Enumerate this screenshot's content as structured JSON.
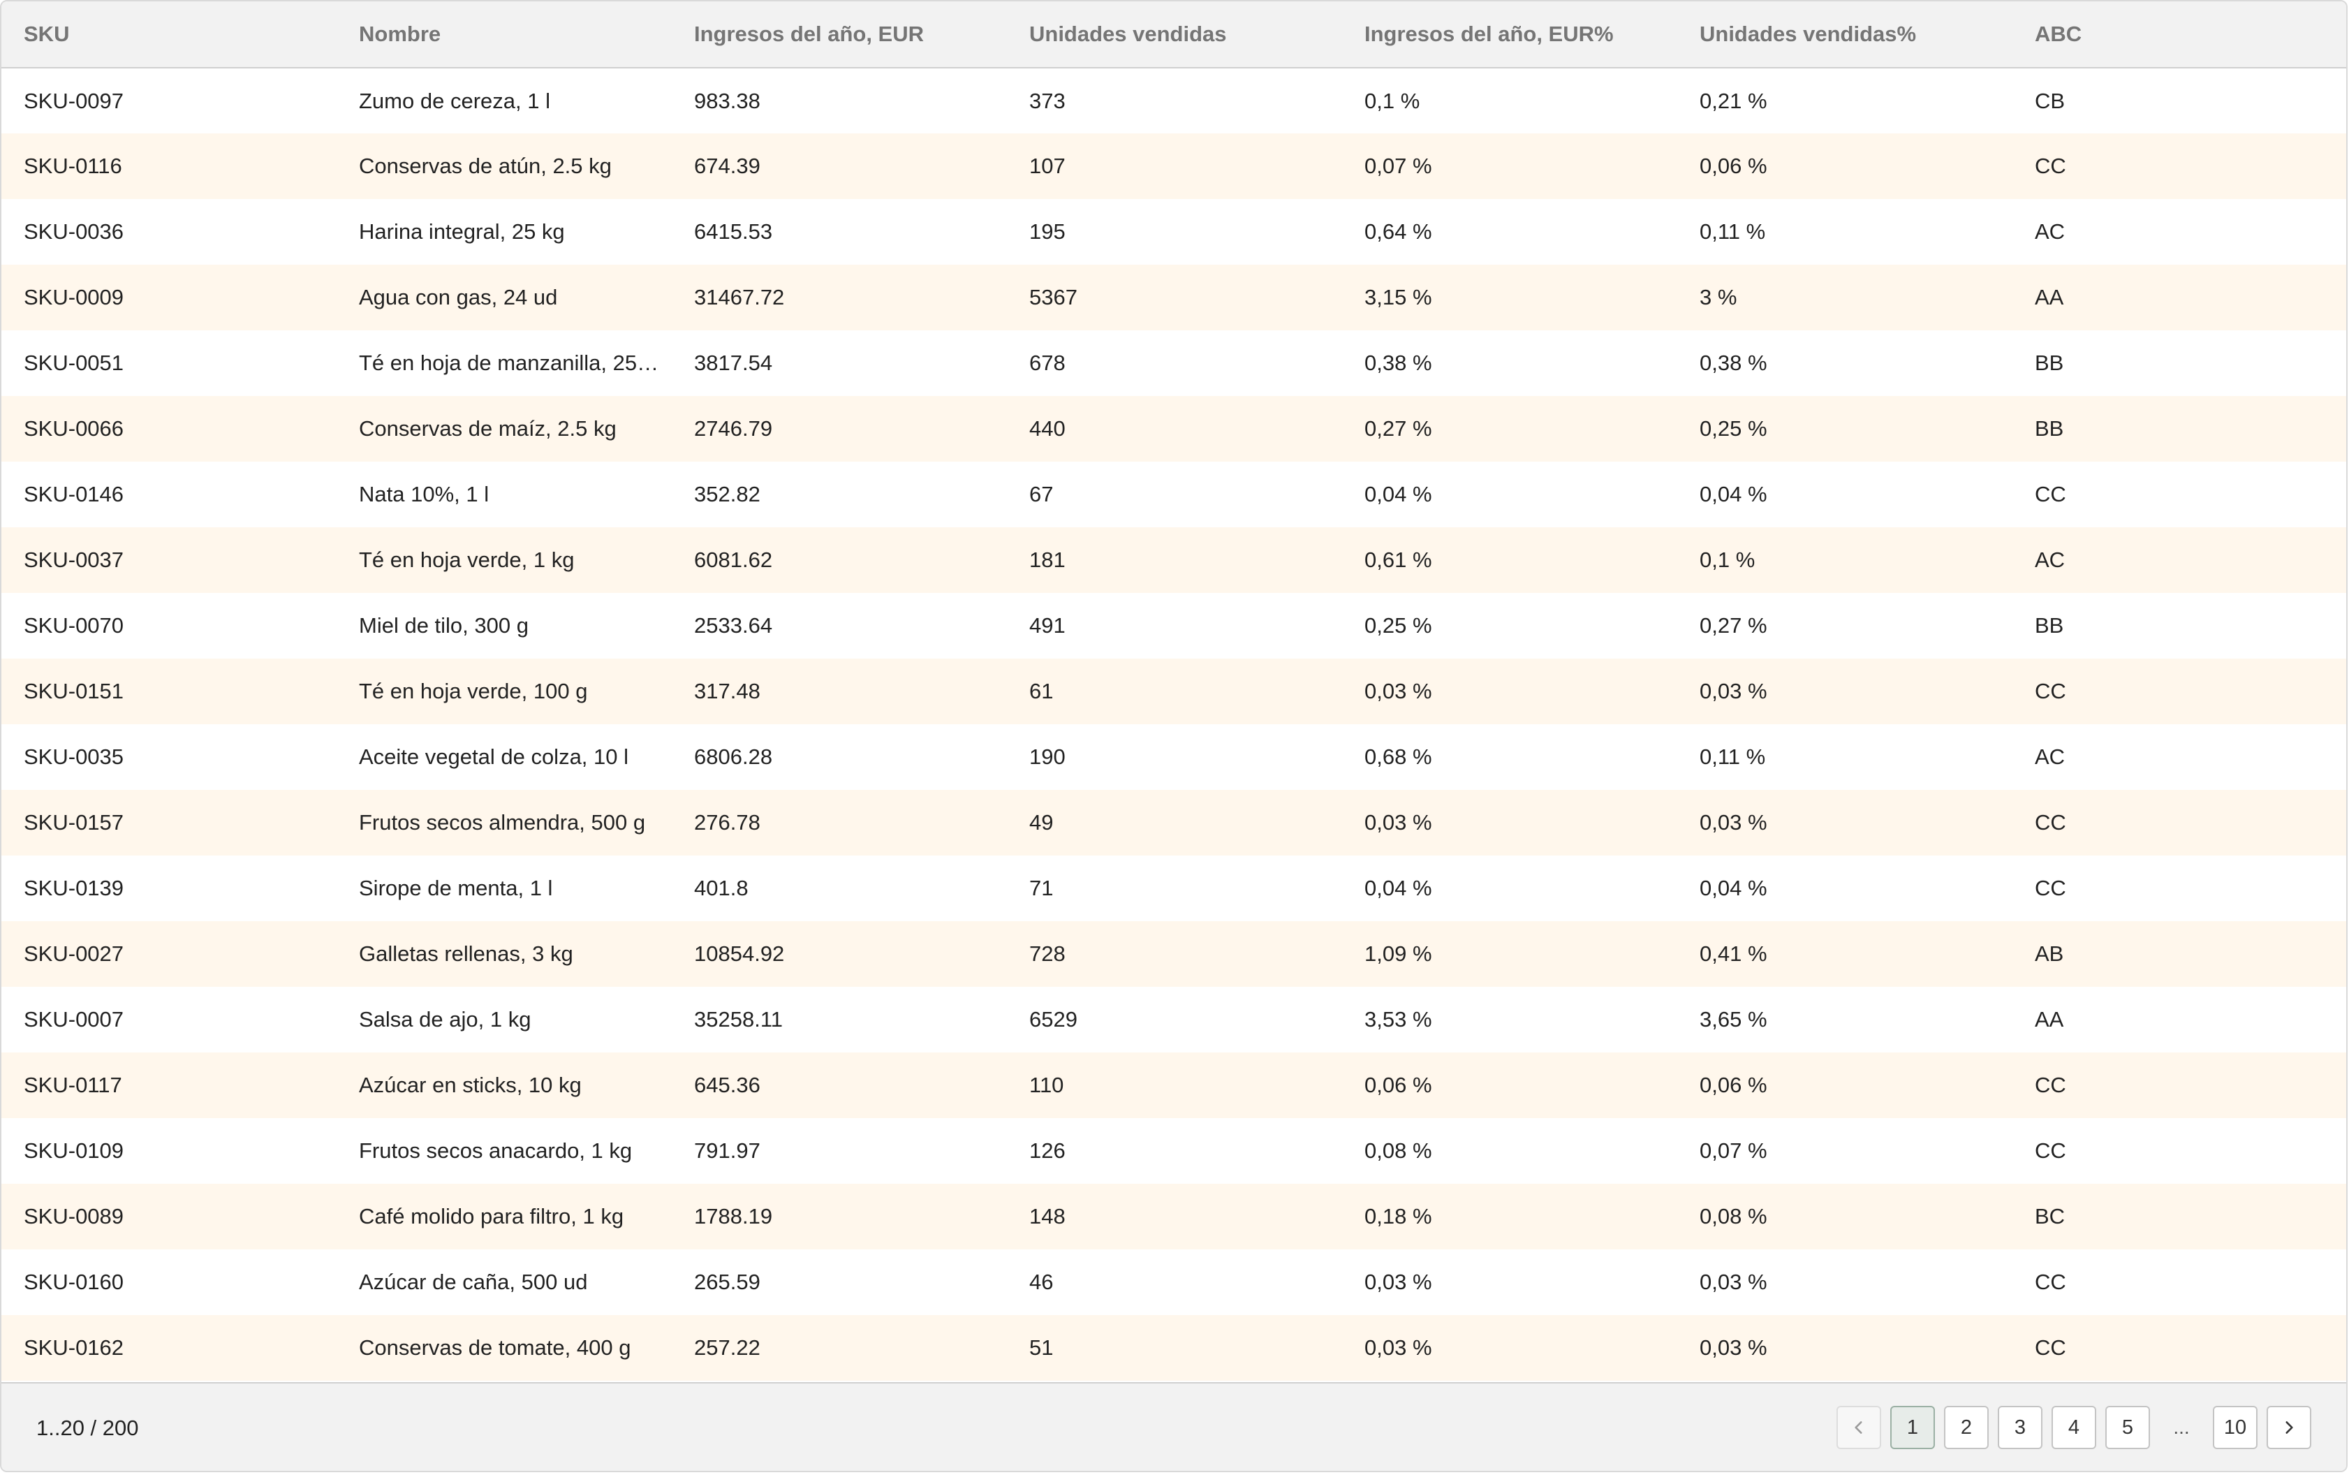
{
  "table": {
    "columns": [
      "SKU",
      "Nombre",
      "Ingresos del año, EUR",
      "Unidades vendidas",
      "Ingresos del año, EUR%",
      "Unidades vendidas%",
      "ABC"
    ],
    "rows": [
      [
        "SKU-0097",
        "Zumo de cereza, 1 l",
        "983.38",
        "373",
        "0,1 %",
        "0,21 %",
        "CB"
      ],
      [
        "SKU-0116",
        "Conservas de atún, 2.5 kg",
        "674.39",
        "107",
        "0,07 %",
        "0,06 %",
        "CC"
      ],
      [
        "SKU-0036",
        "Harina integral, 25 kg",
        "6415.53",
        "195",
        "0,64 %",
        "0,11 %",
        "AC"
      ],
      [
        "SKU-0009",
        "Agua con gas, 24 ud",
        "31467.72",
        "5367",
        "3,15 %",
        "3 %",
        "AA"
      ],
      [
        "SKU-0051",
        "Té en hoja de manzanilla, 25…",
        "3817.54",
        "678",
        "0,38 %",
        "0,38 %",
        "BB"
      ],
      [
        "SKU-0066",
        "Conservas de maíz, 2.5 kg",
        "2746.79",
        "440",
        "0,27 %",
        "0,25 %",
        "BB"
      ],
      [
        "SKU-0146",
        "Nata 10%, 1 l",
        "352.82",
        "67",
        "0,04 %",
        "0,04 %",
        "CC"
      ],
      [
        "SKU-0037",
        "Té en hoja verde, 1 kg",
        "6081.62",
        "181",
        "0,61 %",
        "0,1 %",
        "AC"
      ],
      [
        "SKU-0070",
        "Miel de tilo, 300 g",
        "2533.64",
        "491",
        "0,25 %",
        "0,27 %",
        "BB"
      ],
      [
        "SKU-0151",
        "Té en hoja verde, 100 g",
        "317.48",
        "61",
        "0,03 %",
        "0,03 %",
        "CC"
      ],
      [
        "SKU-0035",
        "Aceite vegetal de colza, 10 l",
        "6806.28",
        "190",
        "0,68 %",
        "0,11 %",
        "AC"
      ],
      [
        "SKU-0157",
        "Frutos secos almendra, 500 g",
        "276.78",
        "49",
        "0,03 %",
        "0,03 %",
        "CC"
      ],
      [
        "SKU-0139",
        "Sirope de menta, 1 l",
        "401.8",
        "71",
        "0,04 %",
        "0,04 %",
        "CC"
      ],
      [
        "SKU-0027",
        "Galletas rellenas, 3 kg",
        "10854.92",
        "728",
        "1,09 %",
        "0,41 %",
        "AB"
      ],
      [
        "SKU-0007",
        "Salsa de ajo, 1 kg",
        "35258.11",
        "6529",
        "3,53 %",
        "3,65 %",
        "AA"
      ],
      [
        "SKU-0117",
        "Azúcar en sticks, 10 kg",
        "645.36",
        "110",
        "0,06 %",
        "0,06 %",
        "CC"
      ],
      [
        "SKU-0109",
        "Frutos secos anacardo, 1 kg",
        "791.97",
        "126",
        "0,08 %",
        "0,07 %",
        "CC"
      ],
      [
        "SKU-0089",
        "Café molido para filtro, 1 kg",
        "1788.19",
        "148",
        "0,18 %",
        "0,08 %",
        "BC"
      ],
      [
        "SKU-0160",
        "Azúcar de caña, 500 ud",
        "265.59",
        "46",
        "0,03 %",
        "0,03 %",
        "CC"
      ],
      [
        "SKU-0162",
        "Conservas de tomate, 400 g",
        "257.22",
        "51",
        "0,03 %",
        "0,03 %",
        "CC"
      ]
    ]
  },
  "footer": {
    "range": "1..20 / 200",
    "pagination": {
      "prev_icon": "chevron-left-icon",
      "next_icon": "chevron-right-icon",
      "pages": [
        "1",
        "2",
        "3",
        "4",
        "5"
      ],
      "ellipsis": "...",
      "last_page": "10",
      "current_page": "1"
    }
  },
  "colors": {
    "header_bg": "#f2f2f2",
    "stripe_bg": "#fff7ec",
    "active_page_bg": "#e7ece9"
  }
}
